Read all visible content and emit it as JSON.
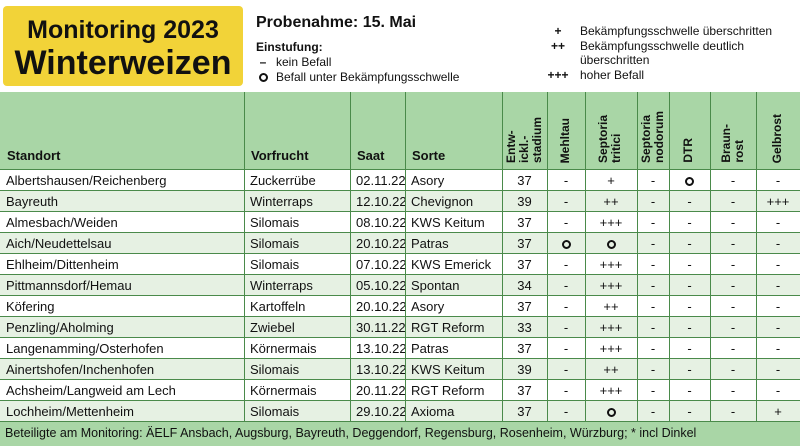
{
  "header": {
    "title_line1": "Monitoring 2023",
    "title_line2": "Winterweizen",
    "probenahme": "Probenahme: 15. Mai",
    "einstufung_title": "Einstufung:",
    "einstufung": [
      {
        "symbol": "–",
        "text": "kein Befall"
      },
      {
        "symbol": "o",
        "text": "Befall unter Bekämpfungsschwelle"
      }
    ],
    "legend": [
      {
        "symbol": "+",
        "text": "Bekämpfungsschwelle überschritten"
      },
      {
        "symbol": "++",
        "text": "Bekämpfungsschwelle deutlich"
      },
      {
        "symbol": "",
        "text": "überschritten"
      },
      {
        "symbol": "+++",
        "text": "hoher Befall"
      }
    ]
  },
  "table": {
    "headers": {
      "standort": "Standort",
      "vorfrucht": "Vorfrucht",
      "saat": "Saat",
      "sorte": "Sorte",
      "stadium": "Entwickl.-stadium",
      "stadium_lines": [
        "Entw-",
        "ickl.-",
        "stadium"
      ],
      "mehltau": "Mehltau",
      "septoria_tritici_lines": [
        "Septoria",
        "tritici"
      ],
      "septoria_nodorum_lines": [
        "Septoria",
        "nodorum"
      ],
      "dtr": "DTR",
      "braunrost_lines": [
        "Braun-",
        "rost"
      ],
      "gelbrost": "Gelbrost"
    },
    "rows": [
      {
        "standort": "Albertshausen/Reichenberg",
        "vorfrucht": "Zuckerrübe",
        "saat": "02.11.22",
        "sorte": "Asory",
        "stadium": "37",
        "mehltau": "-",
        "septoria_tritici": "+",
        "septoria_nodorum": "-",
        "dtr": "o",
        "braunrost": "-",
        "gelbrost": "-"
      },
      {
        "standort": "Bayreuth",
        "vorfrucht": "Winterraps",
        "saat": "12.10.22",
        "sorte": "Chevignon",
        "stadium": "39",
        "mehltau": "-",
        "septoria_tritici": "++",
        "septoria_nodorum": "-",
        "dtr": "-",
        "braunrost": "-",
        "gelbrost": "+++"
      },
      {
        "standort": "Almesbach/Weiden",
        "vorfrucht": "Silomais",
        "saat": "08.10.22",
        "sorte": "KWS Keitum",
        "stadium": "37",
        "mehltau": "-",
        "septoria_tritici": "+++",
        "septoria_nodorum": "-",
        "dtr": "-",
        "braunrost": "-",
        "gelbrost": "-"
      },
      {
        "standort": "Aich/Neudettelsau",
        "vorfrucht": "Silomais",
        "saat": "20.10.22",
        "sorte": "Patras",
        "stadium": "37",
        "mehltau": "o",
        "septoria_tritici": "o",
        "septoria_nodorum": "-",
        "dtr": "-",
        "braunrost": "-",
        "gelbrost": "-"
      },
      {
        "standort": "Ehlheim/Dittenheim",
        "vorfrucht": "Silomais",
        "saat": "07.10.22",
        "sorte": "KWS Emerick",
        "stadium": "37",
        "mehltau": "-",
        "septoria_tritici": "+++",
        "septoria_nodorum": "-",
        "dtr": "-",
        "braunrost": "-",
        "gelbrost": "-"
      },
      {
        "standort": "Pittmannsdorf/Hemau",
        "vorfrucht": "Winterraps",
        "saat": "05.10.22",
        "sorte": "Spontan",
        "stadium": "34",
        "mehltau": "-",
        "septoria_tritici": "+++",
        "septoria_nodorum": "-",
        "dtr": "-",
        "braunrost": "-",
        "gelbrost": "-"
      },
      {
        "standort": "Köfering",
        "vorfrucht": "Kartoffeln",
        "saat": "20.10.22",
        "sorte": "Asory",
        "stadium": "37",
        "mehltau": "-",
        "septoria_tritici": "++",
        "septoria_nodorum": "-",
        "dtr": "-",
        "braunrost": "-",
        "gelbrost": "-"
      },
      {
        "standort": "Penzling/Aholming",
        "vorfrucht": "Zwiebel",
        "saat": "30.11.22",
        "sorte": "RGT Reform",
        "stadium": "33",
        "mehltau": "-",
        "septoria_tritici": "+++",
        "septoria_nodorum": "-",
        "dtr": "-",
        "braunrost": "-",
        "gelbrost": "-"
      },
      {
        "standort": "Langenamming/Osterhofen",
        "vorfrucht": "Körnermais",
        "saat": "13.10.22",
        "sorte": "Patras",
        "stadium": "37",
        "mehltau": "-",
        "septoria_tritici": "+++",
        "septoria_nodorum": "-",
        "dtr": "-",
        "braunrost": "-",
        "gelbrost": "-"
      },
      {
        "standort": "Ainertshofen/Inchenhofen",
        "vorfrucht": "Silomais",
        "saat": "13.10.22",
        "sorte": "KWS Keitum",
        "stadium": "39",
        "mehltau": "-",
        "septoria_tritici": "++",
        "septoria_nodorum": "-",
        "dtr": "-",
        "braunrost": "-",
        "gelbrost": "-"
      },
      {
        "standort": "Achsheim/Langweid am Lech",
        "vorfrucht": "Körnermais",
        "saat": "20.11.22",
        "sorte": "RGT Reform",
        "stadium": "37",
        "mehltau": "-",
        "septoria_tritici": "+++",
        "septoria_nodorum": "-",
        "dtr": "-",
        "braunrost": "-",
        "gelbrost": "-"
      },
      {
        "standort": "Lochheim/Mettenheim",
        "vorfrucht": "Silomais",
        "saat": "29.10.22",
        "sorte": "Axioma",
        "stadium": "37",
        "mehltau": "-",
        "septoria_tritici": "o",
        "septoria_nodorum": "-",
        "dtr": "-",
        "braunrost": "-",
        "gelbrost": "+"
      }
    ]
  },
  "footer": {
    "text": "Beteiligte am Monitoring: ÄELF Ansbach, Augsburg, Bayreuth, Deggendorf, Regensburg, Rosenheim, Würzburg; * incl Dinkel"
  },
  "colors": {
    "title_bg": "#f2d338",
    "header_green": "#a9d6a6",
    "row_alt": "#e6f1e3",
    "grid_line": "#4a8a4a"
  }
}
